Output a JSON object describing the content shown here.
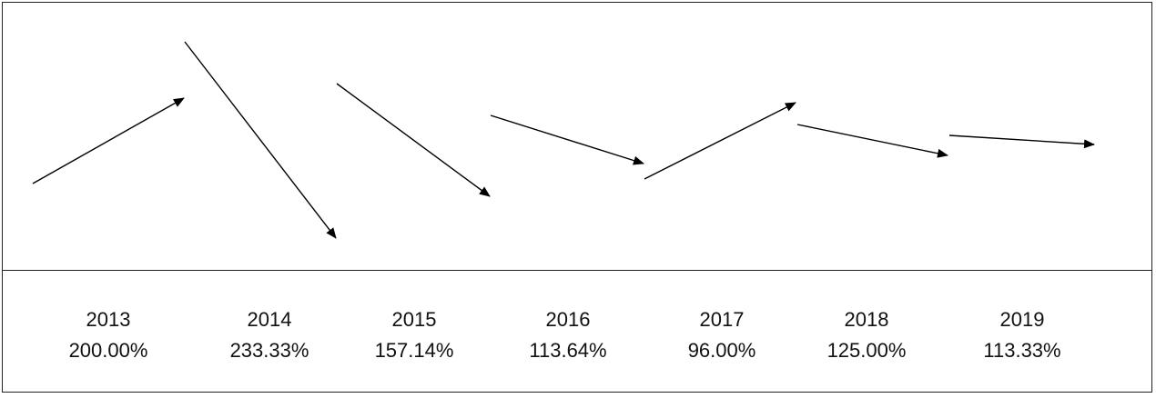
{
  "chart_data": {
    "type": "line",
    "title": "",
    "xlabel": "",
    "ylabel": "",
    "categories": [
      "2013",
      "2014",
      "2015",
      "2016",
      "2017",
      "2018",
      "2019"
    ],
    "values_text": [
      "200.00%",
      "233.33%",
      "157.14%",
      "113.64%",
      "96.00%",
      "125.00%",
      "113.33%"
    ],
    "values": [
      200.0,
      233.33,
      157.14,
      113.64,
      96.0,
      125.0,
      113.33
    ],
    "marker": "arrow",
    "line_color": "#000000",
    "grid": false,
    "legend": "none"
  }
}
